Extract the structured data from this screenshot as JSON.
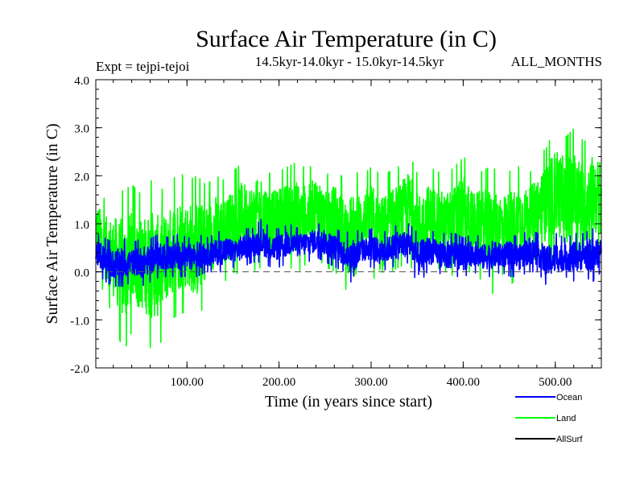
{
  "chart_data": {
    "type": "line",
    "title": "Surface Air Temperature (in C)",
    "subtitle_left": "Expt = tejpi-tejoi",
    "subtitle_center": "14.5kyr-14.0kyr - 15.0kyr-14.5kyr",
    "subtitle_right": "ALL_MONTHS",
    "xlabel": "Time (in years since start)",
    "ylabel": "Surface Air Temperature (in C)",
    "xlim": [
      1,
      550
    ],
    "ylim": [
      -2.0,
      4.0
    ],
    "xticks": [
      100,
      200,
      300,
      400,
      500
    ],
    "xtick_labels": [
      "100.00",
      "200.00",
      "300.00",
      "400.00",
      "500.00"
    ],
    "yticks": [
      -2.0,
      -1.0,
      0.0,
      1.0,
      2.0,
      3.0,
      4.0
    ],
    "ytick_labels": [
      "-2.0",
      "-1.0",
      "0.0",
      "1.0",
      "2.0",
      "3.0",
      "4.0"
    ],
    "zero_line": 0.0,
    "legend_position": "bottom-right",
    "series": [
      {
        "name": "Land",
        "color": "#00ff00",
        "x_step": 10,
        "x_start": 1,
        "summary": [
          {
            "x": 1,
            "min": 0.0,
            "max": 1.8
          },
          {
            "x": 11,
            "min": -0.5,
            "max": 1.5
          },
          {
            "x": 21,
            "min": -1.0,
            "max": 1.6
          },
          {
            "x": 31,
            "min": -1.7,
            "max": 1.7
          },
          {
            "x": 41,
            "min": -1.2,
            "max": 1.8
          },
          {
            "x": 51,
            "min": -1.3,
            "max": 1.6
          },
          {
            "x": 61,
            "min": -1.6,
            "max": 1.9
          },
          {
            "x": 71,
            "min": -1.5,
            "max": 1.7
          },
          {
            "x": 81,
            "min": -1.0,
            "max": 1.8
          },
          {
            "x": 91,
            "min": -0.9,
            "max": 2.1
          },
          {
            "x": 101,
            "min": -0.8,
            "max": 1.9
          },
          {
            "x": 111,
            "min": -1.1,
            "max": 2.0
          },
          {
            "x": 121,
            "min": -0.5,
            "max": 1.8
          },
          {
            "x": 131,
            "min": -0.3,
            "max": 2.0
          },
          {
            "x": 141,
            "min": -0.2,
            "max": 1.9
          },
          {
            "x": 151,
            "min": 0.0,
            "max": 2.1
          },
          {
            "x": 161,
            "min": -0.1,
            "max": 2.3
          },
          {
            "x": 171,
            "min": 0.0,
            "max": 2.2
          },
          {
            "x": 181,
            "min": 0.1,
            "max": 2.4
          },
          {
            "x": 191,
            "min": 0.0,
            "max": 2.0
          },
          {
            "x": 201,
            "min": 0.2,
            "max": 2.1
          },
          {
            "x": 211,
            "min": 0.1,
            "max": 2.2
          },
          {
            "x": 221,
            "min": 0.0,
            "max": 2.3
          },
          {
            "x": 231,
            "min": 0.2,
            "max": 2.1
          },
          {
            "x": 241,
            "min": 0.3,
            "max": 2.4
          },
          {
            "x": 251,
            "min": 0.1,
            "max": 2.0
          },
          {
            "x": 261,
            "min": 0.0,
            "max": 2.2
          },
          {
            "x": 271,
            "min": -0.3,
            "max": 1.9
          },
          {
            "x": 281,
            "min": -0.7,
            "max": 2.1
          },
          {
            "x": 291,
            "min": 0.1,
            "max": 2.0
          },
          {
            "x": 301,
            "min": 0.0,
            "max": 2.2
          },
          {
            "x": 311,
            "min": -0.6,
            "max": 2.0
          },
          {
            "x": 321,
            "min": 0.0,
            "max": 2.1
          },
          {
            "x": 331,
            "min": 0.1,
            "max": 2.2
          },
          {
            "x": 341,
            "min": 0.2,
            "max": 2.5
          },
          {
            "x": 351,
            "min": -0.2,
            "max": 2.0
          },
          {
            "x": 361,
            "min": 0.0,
            "max": 2.2
          },
          {
            "x": 371,
            "min": 0.1,
            "max": 2.1
          },
          {
            "x": 381,
            "min": 0.0,
            "max": 2.0
          },
          {
            "x": 391,
            "min": -0.1,
            "max": 2.2
          },
          {
            "x": 401,
            "min": 0.0,
            "max": 2.4
          },
          {
            "x": 411,
            "min": 0.0,
            "max": 2.0
          },
          {
            "x": 421,
            "min": -0.2,
            "max": 2.1
          },
          {
            "x": 431,
            "min": -0.5,
            "max": 2.2
          },
          {
            "x": 441,
            "min": 0.0,
            "max": 2.0
          },
          {
            "x": 451,
            "min": -0.3,
            "max": 2.1
          },
          {
            "x": 461,
            "min": 0.0,
            "max": 2.2
          },
          {
            "x": 471,
            "min": 0.2,
            "max": 2.0
          },
          {
            "x": 481,
            "min": 0.3,
            "max": 2.4
          },
          {
            "x": 491,
            "min": 0.2,
            "max": 2.6
          },
          {
            "x": 501,
            "min": 0.3,
            "max": 3.1
          },
          {
            "x": 511,
            "min": 0.1,
            "max": 2.8
          },
          {
            "x": 521,
            "min": 0.2,
            "max": 3.0
          },
          {
            "x": 531,
            "min": 0.0,
            "max": 2.7
          },
          {
            "x": 541,
            "min": 0.3,
            "max": 2.9
          },
          {
            "x": 550,
            "min": 0.4,
            "max": 2.7
          }
        ]
      },
      {
        "name": "Ocean",
        "color": "#0000ff",
        "x_step": 10,
        "x_start": 1,
        "summary": [
          {
            "x": 1,
            "min": 0.0,
            "max": 0.8
          },
          {
            "x": 11,
            "min": -0.2,
            "max": 0.7
          },
          {
            "x": 21,
            "min": -0.3,
            "max": 0.6
          },
          {
            "x": 31,
            "min": -0.3,
            "max": 0.7
          },
          {
            "x": 41,
            "min": -0.2,
            "max": 0.6
          },
          {
            "x": 51,
            "min": -0.3,
            "max": 0.7
          },
          {
            "x": 61,
            "min": -0.2,
            "max": 0.7
          },
          {
            "x": 71,
            "min": -0.1,
            "max": 0.8
          },
          {
            "x": 81,
            "min": -0.1,
            "max": 0.7
          },
          {
            "x": 91,
            "min": -0.1,
            "max": 0.8
          },
          {
            "x": 101,
            "min": -0.1,
            "max": 0.7
          },
          {
            "x": 111,
            "min": -0.1,
            "max": 0.8
          },
          {
            "x": 121,
            "min": 0.0,
            "max": 0.7
          },
          {
            "x": 131,
            "min": 0.0,
            "max": 0.8
          },
          {
            "x": 141,
            "min": 0.0,
            "max": 0.9
          },
          {
            "x": 151,
            "min": 0.1,
            "max": 0.8
          },
          {
            "x": 161,
            "min": 0.1,
            "max": 0.9
          },
          {
            "x": 171,
            "min": 0.2,
            "max": 0.9
          },
          {
            "x": 181,
            "min": 0.2,
            "max": 1.1
          },
          {
            "x": 191,
            "min": 0.1,
            "max": 0.9
          },
          {
            "x": 201,
            "min": 0.1,
            "max": 0.9
          },
          {
            "x": 211,
            "min": 0.2,
            "max": 1.0
          },
          {
            "x": 221,
            "min": 0.2,
            "max": 0.9
          },
          {
            "x": 231,
            "min": 0.2,
            "max": 1.0
          },
          {
            "x": 241,
            "min": 0.3,
            "max": 1.0
          },
          {
            "x": 251,
            "min": 0.2,
            "max": 1.0
          },
          {
            "x": 261,
            "min": 0.1,
            "max": 0.9
          },
          {
            "x": 271,
            "min": 0.0,
            "max": 0.8
          },
          {
            "x": 281,
            "min": -0.3,
            "max": 0.9
          },
          {
            "x": 291,
            "min": 0.1,
            "max": 0.8
          },
          {
            "x": 301,
            "min": 0.1,
            "max": 0.9
          },
          {
            "x": 311,
            "min": 0.0,
            "max": 0.8
          },
          {
            "x": 321,
            "min": 0.1,
            "max": 0.9
          },
          {
            "x": 331,
            "min": 0.1,
            "max": 1.0
          },
          {
            "x": 341,
            "min": 0.2,
            "max": 1.0
          },
          {
            "x": 351,
            "min": -0.3,
            "max": 0.8
          },
          {
            "x": 361,
            "min": 0.0,
            "max": 0.9
          },
          {
            "x": 371,
            "min": 0.0,
            "max": 0.8
          },
          {
            "x": 381,
            "min": -0.1,
            "max": 0.8
          },
          {
            "x": 391,
            "min": -0.1,
            "max": 0.8
          },
          {
            "x": 401,
            "min": -0.1,
            "max": 0.7
          },
          {
            "x": 411,
            "min": 0.0,
            "max": 0.8
          },
          {
            "x": 421,
            "min": -0.1,
            "max": 0.7
          },
          {
            "x": 431,
            "min": -0.1,
            "max": 0.8
          },
          {
            "x": 441,
            "min": 0.0,
            "max": 0.7
          },
          {
            "x": 451,
            "min": -0.1,
            "max": 0.8
          },
          {
            "x": 461,
            "min": -0.1,
            "max": 0.7
          },
          {
            "x": 471,
            "min": 0.0,
            "max": 0.9
          },
          {
            "x": 481,
            "min": 0.0,
            "max": 0.8
          },
          {
            "x": 491,
            "min": -0.3,
            "max": 0.7
          },
          {
            "x": 501,
            "min": -0.2,
            "max": 0.8
          },
          {
            "x": 511,
            "min": -0.1,
            "max": 0.7
          },
          {
            "x": 521,
            "min": -0.2,
            "max": 0.8
          },
          {
            "x": 531,
            "min": -0.1,
            "max": 0.8
          },
          {
            "x": 541,
            "min": -0.2,
            "max": 0.9
          },
          {
            "x": 550,
            "min": 0.0,
            "max": 0.8
          }
        ]
      },
      {
        "name": "AllSurf",
        "color": "#000000",
        "x_step": 10,
        "x_start": 1,
        "summary": [
          {
            "x": 1,
            "min": 0.1,
            "max": 0.9
          },
          {
            "x": 101,
            "min": 0.0,
            "max": 0.9
          },
          {
            "x": 201,
            "min": 0.2,
            "max": 1.0
          },
          {
            "x": 301,
            "min": 0.1,
            "max": 0.9
          },
          {
            "x": 401,
            "min": 0.0,
            "max": 0.8
          },
          {
            "x": 501,
            "min": 0.2,
            "max": 1.1
          },
          {
            "x": 550,
            "min": 0.5,
            "max": 1.1
          }
        ]
      }
    ]
  }
}
